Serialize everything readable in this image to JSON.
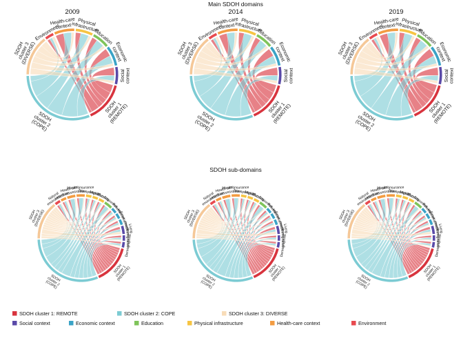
{
  "chart_data": {
    "type": "chord",
    "title": "Main SDOH domains",
    "subtitle": "SDOH sub-domains",
    "years": [
      "2009",
      "2014",
      "2019"
    ],
    "main_groups": [
      {
        "key": "cl1",
        "lines": [
          "SDOH",
          "cluster 1",
          "(REMOTE)"
        ],
        "color": "#d8343e",
        "size": 14
      },
      {
        "key": "cl2",
        "lines": [
          "SDOH",
          "cluster 2",
          "(COPE)"
        ],
        "color": "#7ccbd3",
        "size": 30
      },
      {
        "key": "cl3",
        "lines": [
          "SDOH",
          "cluster 3",
          "(DIVERSE)"
        ],
        "color": "#f8dcb8",
        "size": 14
      },
      {
        "key": "env",
        "lines": [
          "Environment"
        ],
        "color": "#e84a4f",
        "size": 3
      },
      {
        "key": "hc",
        "lines": [
          "Health-care",
          "context"
        ],
        "color": "#f39c42",
        "size": 7
      },
      {
        "key": "phys",
        "lines": [
          "Physical",
          "infrastructure"
        ],
        "color": "#f6c443",
        "size": 6
      },
      {
        "key": "edu",
        "lines": [
          "Education"
        ],
        "color": "#7fc45a",
        "size": 6
      },
      {
        "key": "econ",
        "lines": [
          "Economic",
          "context"
        ],
        "color": "#3aa3c6",
        "size": 7
      },
      {
        "key": "soc",
        "lines": [
          "Social",
          "context"
        ],
        "color": "#5a4aa8",
        "size": 6
      }
    ],
    "main_flows": {
      "cl1": [
        [
          "soc",
          3
        ],
        [
          "econ",
          3
        ],
        [
          "edu",
          2
        ],
        [
          "phys",
          2
        ],
        [
          "hc",
          3
        ],
        [
          "env",
          1
        ]
      ],
      "cl2": [
        [
          "soc",
          2
        ],
        [
          "econ",
          3
        ],
        [
          "edu",
          3
        ],
        [
          "phys",
          3
        ],
        [
          "hc",
          3
        ],
        [
          "env",
          1
        ]
      ],
      "cl3": [
        [
          "soc",
          1
        ],
        [
          "econ",
          1
        ],
        [
          "edu",
          1
        ],
        [
          "phys",
          1
        ],
        [
          "hc",
          1
        ],
        [
          "env",
          1
        ]
      ]
    },
    "sub_groups": [
      {
        "key": "cl1",
        "lines": [
          "SDOH",
          "cluster 1",
          "(REMOTE)"
        ],
        "color": "#d8343e",
        "size": 14
      },
      {
        "key": "cl2",
        "lines": [
          "SDOH",
          "cluster 2",
          "(COPE)"
        ],
        "color": "#7ccbd3",
        "size": 30
      },
      {
        "key": "cl3",
        "lines": [
          "SDOH",
          "cluster 3",
          "(DIVERSE)"
        ],
        "color": "#f8dcb8",
        "size": 14
      },
      {
        "key": "nat",
        "lines": [
          "Natural",
          "environment"
        ],
        "color": "#e84a4f",
        "size": 2
      },
      {
        "key": "util",
        "lines": [
          "Utilization"
        ],
        "color": "#f39c42",
        "size": 2
      },
      {
        "key": "hca",
        "lines": [
          "Health-care",
          "access"
        ],
        "color": "#f39c42",
        "size": 3
      },
      {
        "key": "hins",
        "lines": [
          "Health insurance",
          "status"
        ],
        "color": "#f39c42",
        "size": 3
      },
      {
        "key": "trans",
        "lines": [
          "Transportation"
        ],
        "color": "#f6c443",
        "size": 2
      },
      {
        "key": "mig",
        "lines": [
          "Migration"
        ],
        "color": "#f6c443",
        "size": 2
      },
      {
        "key": "hous",
        "lines": [
          "Housing"
        ],
        "color": "#f6c443",
        "size": 2
      },
      {
        "key": "att",
        "lines": [
          "Attainment"
        ],
        "color": "#7fc45a",
        "size": 3
      },
      {
        "key": "pov",
        "lines": [
          "Poverty"
        ],
        "color": "#3aa3c6",
        "size": 2
      },
      {
        "key": "inc",
        "lines": [
          "Income"
        ],
        "color": "#3aa3c6",
        "size": 2
      },
      {
        "key": "emp",
        "lines": [
          "Employment"
        ],
        "color": "#3aa3c6",
        "size": 2
      },
      {
        "key": "liv",
        "lines": [
          "Living",
          "conditions"
        ],
        "color": "#5a4aa8",
        "size": 3
      },
      {
        "key": "imm",
        "lines": [
          "Immigration"
        ],
        "color": "#5a4aa8",
        "size": 2
      },
      {
        "key": "demo",
        "lines": [
          "Demographics"
        ],
        "color": "#5a4aa8",
        "size": 2
      }
    ],
    "sub_flows": {
      "cl1": [
        [
          "demo",
          1
        ],
        [
          "imm",
          1
        ],
        [
          "liv",
          1
        ],
        [
          "emp",
          1
        ],
        [
          "inc",
          1
        ],
        [
          "pov",
          1
        ],
        [
          "att",
          1
        ],
        [
          "hous",
          1
        ],
        [
          "mig",
          1
        ],
        [
          "trans",
          1
        ],
        [
          "hins",
          1
        ],
        [
          "hca",
          1
        ],
        [
          "util",
          1
        ],
        [
          "nat",
          1
        ]
      ],
      "cl2": [
        [
          "demo",
          1
        ],
        [
          "imm",
          1
        ],
        [
          "liv",
          1
        ],
        [
          "emp",
          1
        ],
        [
          "inc",
          1
        ],
        [
          "pov",
          1
        ],
        [
          "att",
          2
        ],
        [
          "hous",
          1
        ],
        [
          "mig",
          1
        ],
        [
          "trans",
          1
        ],
        [
          "hins",
          2
        ],
        [
          "hca",
          2
        ],
        [
          "util",
          1
        ],
        [
          "nat",
          1
        ]
      ],
      "cl3": [
        [
          "demo",
          0.5
        ],
        [
          "imm",
          0.5
        ],
        [
          "liv",
          1
        ],
        [
          "emp",
          0.5
        ],
        [
          "inc",
          0.5
        ],
        [
          "pov",
          0.5
        ],
        [
          "att",
          0.5
        ],
        [
          "hous",
          0.5
        ],
        [
          "mig",
          0.5
        ],
        [
          "trans",
          0.5
        ],
        [
          "hins",
          0.5
        ],
        [
          "hca",
          0.5
        ],
        [
          "util",
          0.5
        ],
        [
          "nat",
          0.5
        ]
      ]
    },
    "legend": [
      {
        "label": "SDOH cluster 1: REMOTE",
        "color": "#d8343e"
      },
      {
        "label": "SDOH cluster 2: COPE",
        "color": "#7ccbd3"
      },
      {
        "label": "SDOH cluster 3: DIVERSE",
        "color": "#f8dcb8"
      },
      {
        "label": "Social context",
        "color": "#5a4aa8"
      },
      {
        "label": "Economic context",
        "color": "#3aa3c6"
      },
      {
        "label": "Education",
        "color": "#7fc45a"
      },
      {
        "label": "Physical infrastructure",
        "color": "#f6c443"
      },
      {
        "label": "Health-care context",
        "color": "#f39c42"
      },
      {
        "label": "Environment",
        "color": "#e84a4f"
      }
    ]
  }
}
